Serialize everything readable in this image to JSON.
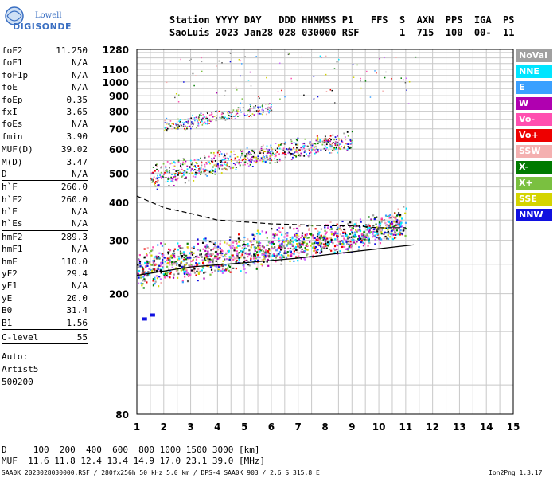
{
  "logo": {
    "line1": "Lowell",
    "line2": "DIGISONDE"
  },
  "header": {
    "line1": "Station YYYY DAY   DDD HHMMSS P1   FFS  S  AXN  PPS  IGA  PS",
    "line2": "SaoLuis 2023 Jan28 028 030000 RSF       1  715  100  00-  11"
  },
  "params": [
    {
      "name": "foF2",
      "value": "11.250"
    },
    {
      "name": "foF1",
      "value": "N/A"
    },
    {
      "name": "foF1p",
      "value": "N/A"
    },
    {
      "name": "foE",
      "value": "N/A"
    },
    {
      "name": "foEp",
      "value": "0.35"
    },
    {
      "name": "fxI",
      "value": "3.65"
    },
    {
      "name": "foEs",
      "value": "N/A"
    },
    {
      "name": "fmin",
      "value": "3.90"
    },
    {
      "name": "MUF(D)",
      "value": "39.02"
    },
    {
      "name": "M(D)",
      "value": "3.47"
    },
    {
      "name": "D",
      "value": "N/A"
    },
    {
      "name": "h`F",
      "value": "260.0"
    },
    {
      "name": "h`F2",
      "value": "260.0"
    },
    {
      "name": "h`E",
      "value": "N/A"
    },
    {
      "name": "h`Es",
      "value": "N/A"
    },
    {
      "name": "hmF2",
      "value": "289.3"
    },
    {
      "name": "hmF1",
      "value": "N/A"
    },
    {
      "name": "hmE",
      "value": "110.0"
    },
    {
      "name": "yF2",
      "value": "29.4"
    },
    {
      "name": "yF1",
      "value": "N/A"
    },
    {
      "name": "yE",
      "value": "20.0"
    },
    {
      "name": "B0",
      "value": "31.4"
    },
    {
      "name": "B1",
      "value": "1.56"
    },
    {
      "name": "C-level",
      "value": "55"
    }
  ],
  "auto": {
    "line1": "Auto:",
    "line2": "Artist5",
    "line3": "500200"
  },
  "legend": [
    {
      "label": "NoVal",
      "color": "#a0a0a0"
    },
    {
      "label": "NNE",
      "color": "#00e5ff"
    },
    {
      "label": "E",
      "color": "#3aa0ff"
    },
    {
      "label": "W",
      "color": "#b000b0"
    },
    {
      "label": "Vo-",
      "color": "#ff4fb0"
    },
    {
      "label": "Vo+",
      "color": "#ee0000"
    },
    {
      "label": "SSW",
      "color": "#f4b0b0"
    },
    {
      "label": "X-",
      "color": "#007a00"
    },
    {
      "label": "X+",
      "color": "#7ac040"
    },
    {
      "label": "SSE",
      "color": "#d4d400"
    },
    {
      "label": "NNW",
      "color": "#1010e0"
    }
  ],
  "bottom": {
    "dist_line": "D     100  200  400  600  800 1000 1500 3000 [km]",
    "muf_line": "MUF  11.6 11.8 12.4 13.4 14.9 17.0 23.1 39.0 [MHz]"
  },
  "footer": {
    "left": "SAA0K_2023028030000.RSF / 280fx256h 50 kHz 5.0 km / DPS-4 SAA0K 903 / 2.6 S 315.8 E",
    "right": "Ion2Png 1.3.17"
  },
  "chart_data": {
    "type": "scatter",
    "xlabel": "",
    "ylabel": "",
    "xlim": [
      1,
      15
    ],
    "ylim": [
      80,
      1280
    ],
    "y_scale": "log",
    "x_ticks": [
      1,
      2,
      3,
      4,
      5,
      6,
      7,
      8,
      9,
      10,
      11,
      12,
      13,
      14,
      15
    ],
    "y_ticks": [
      80,
      200,
      300,
      400,
      500,
      600,
      700,
      800,
      900,
      1000,
      1100,
      1280
    ],
    "grid": true,
    "series": [
      {
        "name": "trace_F",
        "points": [
          [
            1,
            235
          ],
          [
            2,
            240
          ],
          [
            3,
            245
          ],
          [
            4,
            252
          ],
          [
            5,
            262
          ],
          [
            6,
            272
          ],
          [
            7,
            282
          ],
          [
            8,
            292
          ],
          [
            9,
            300
          ],
          [
            10,
            315
          ],
          [
            11,
            335
          ]
        ]
      },
      {
        "name": "trace_2F",
        "points": [
          [
            1.5,
            470
          ],
          [
            3,
            500
          ],
          [
            4,
            525
          ],
          [
            5,
            550
          ],
          [
            6,
            570
          ],
          [
            7,
            590
          ],
          [
            8,
            610
          ],
          [
            9,
            620
          ]
        ]
      },
      {
        "name": "trace_3F",
        "points": [
          [
            2,
            705
          ],
          [
            3,
            725
          ],
          [
            4,
            765
          ],
          [
            5,
            790
          ],
          [
            6,
            810
          ]
        ]
      }
    ],
    "profile_curve": [
      [
        1,
        420
      ],
      [
        2,
        385
      ],
      [
        3,
        368
      ],
      [
        4,
        350
      ],
      [
        5,
        345
      ],
      [
        6,
        340
      ],
      [
        7,
        338
      ],
      [
        8,
        335
      ],
      [
        9,
        335
      ],
      [
        10,
        330
      ],
      [
        11,
        330
      ]
    ],
    "h_prime_line": [
      [
        1,
        230
      ],
      [
        3,
        245
      ],
      [
        5,
        253
      ],
      [
        7,
        262
      ],
      [
        9,
        275
      ],
      [
        11.3,
        290
      ]
    ],
    "isolated_echoes": [
      [
        1.2,
        165
      ],
      [
        1.5,
        170
      ]
    ]
  }
}
